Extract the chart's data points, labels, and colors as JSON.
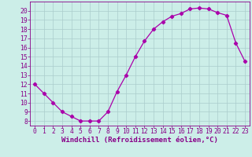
{
  "x": [
    0,
    1,
    2,
    3,
    4,
    5,
    6,
    7,
    8,
    9,
    10,
    11,
    12,
    13,
    14,
    15,
    16,
    17,
    18,
    19,
    20,
    21,
    22,
    23
  ],
  "y": [
    12.0,
    11.0,
    10.0,
    9.0,
    8.5,
    8.0,
    8.0,
    8.0,
    9.0,
    11.2,
    13.0,
    15.0,
    16.7,
    18.0,
    18.8,
    19.4,
    19.7,
    20.2,
    20.3,
    20.2,
    19.8,
    19.5,
    16.5,
    14.5
  ],
  "line_color": "#aa00aa",
  "marker": "D",
  "marker_size": 2.2,
  "bg_color": "#cceee8",
  "grid_color": "#aacccc",
  "xlabel": "Windchill (Refroidissement éolien,°C)",
  "xlim": [
    -0.5,
    23.5
  ],
  "ylim": [
    7.5,
    21.0
  ],
  "yticks": [
    8,
    9,
    10,
    11,
    12,
    13,
    14,
    15,
    16,
    17,
    18,
    19,
    20
  ],
  "xticks": [
    0,
    1,
    2,
    3,
    4,
    5,
    6,
    7,
    8,
    9,
    10,
    11,
    12,
    13,
    14,
    15,
    16,
    17,
    18,
    19,
    20,
    21,
    22,
    23
  ],
  "tick_color": "#880088",
  "label_color": "#880088",
  "font": "monospace",
  "xlabel_fontsize": 6.5,
  "tick_fontsize": 5.8,
  "linewidth": 0.9
}
